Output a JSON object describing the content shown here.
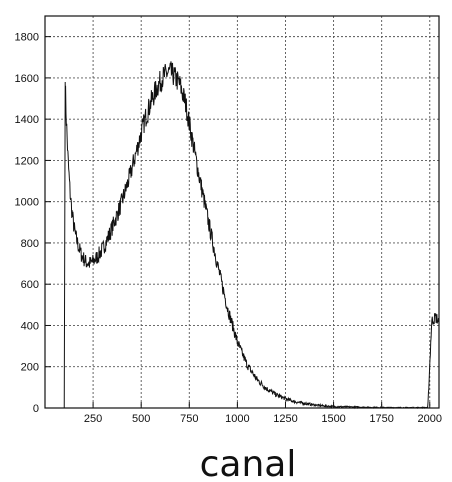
{
  "chart_data": {
    "type": "line",
    "title": "",
    "xlabel": "canal",
    "ylabel": "",
    "xlim": [
      0,
      2048
    ],
    "ylim": [
      0,
      1900
    ],
    "grid": true,
    "legend": "none",
    "x_ticks": [
      250,
      500,
      750,
      1000,
      1250,
      1500,
      1750,
      2000
    ],
    "y_ticks": [
      0,
      200,
      400,
      600,
      800,
      1000,
      1200,
      1400,
      1600,
      1800
    ],
    "series": [
      {
        "name": "",
        "x": [
          100,
          105,
          110,
          120,
          130,
          140,
          150,
          160,
          175,
          190,
          210,
          230,
          250,
          270,
          300,
          330,
          360,
          400,
          440,
          480,
          520,
          550,
          580,
          610,
          630,
          650,
          670,
          700,
          730,
          760,
          800,
          850,
          900,
          950,
          1000,
          1050,
          1100,
          1150,
          1200,
          1250,
          1300,
          1350,
          1400,
          1450,
          1500,
          1600,
          1700,
          1800,
          1900,
          1990,
          2010,
          2020,
          2030,
          2040,
          2045
        ],
        "y": [
          0,
          1580,
          1420,
          1200,
          1050,
          950,
          880,
          830,
          780,
          740,
          710,
          700,
          710,
          730,
          770,
          830,
          900,
          1000,
          1120,
          1260,
          1400,
          1480,
          1550,
          1600,
          1620,
          1630,
          1610,
          1570,
          1480,
          1330,
          1130,
          900,
          680,
          480,
          320,
          210,
          140,
          95,
          65,
          45,
          30,
          22,
          15,
          10,
          7,
          5,
          3,
          2,
          2,
          2,
          420,
          430,
          440,
          430,
          420
        ]
      }
    ]
  }
}
